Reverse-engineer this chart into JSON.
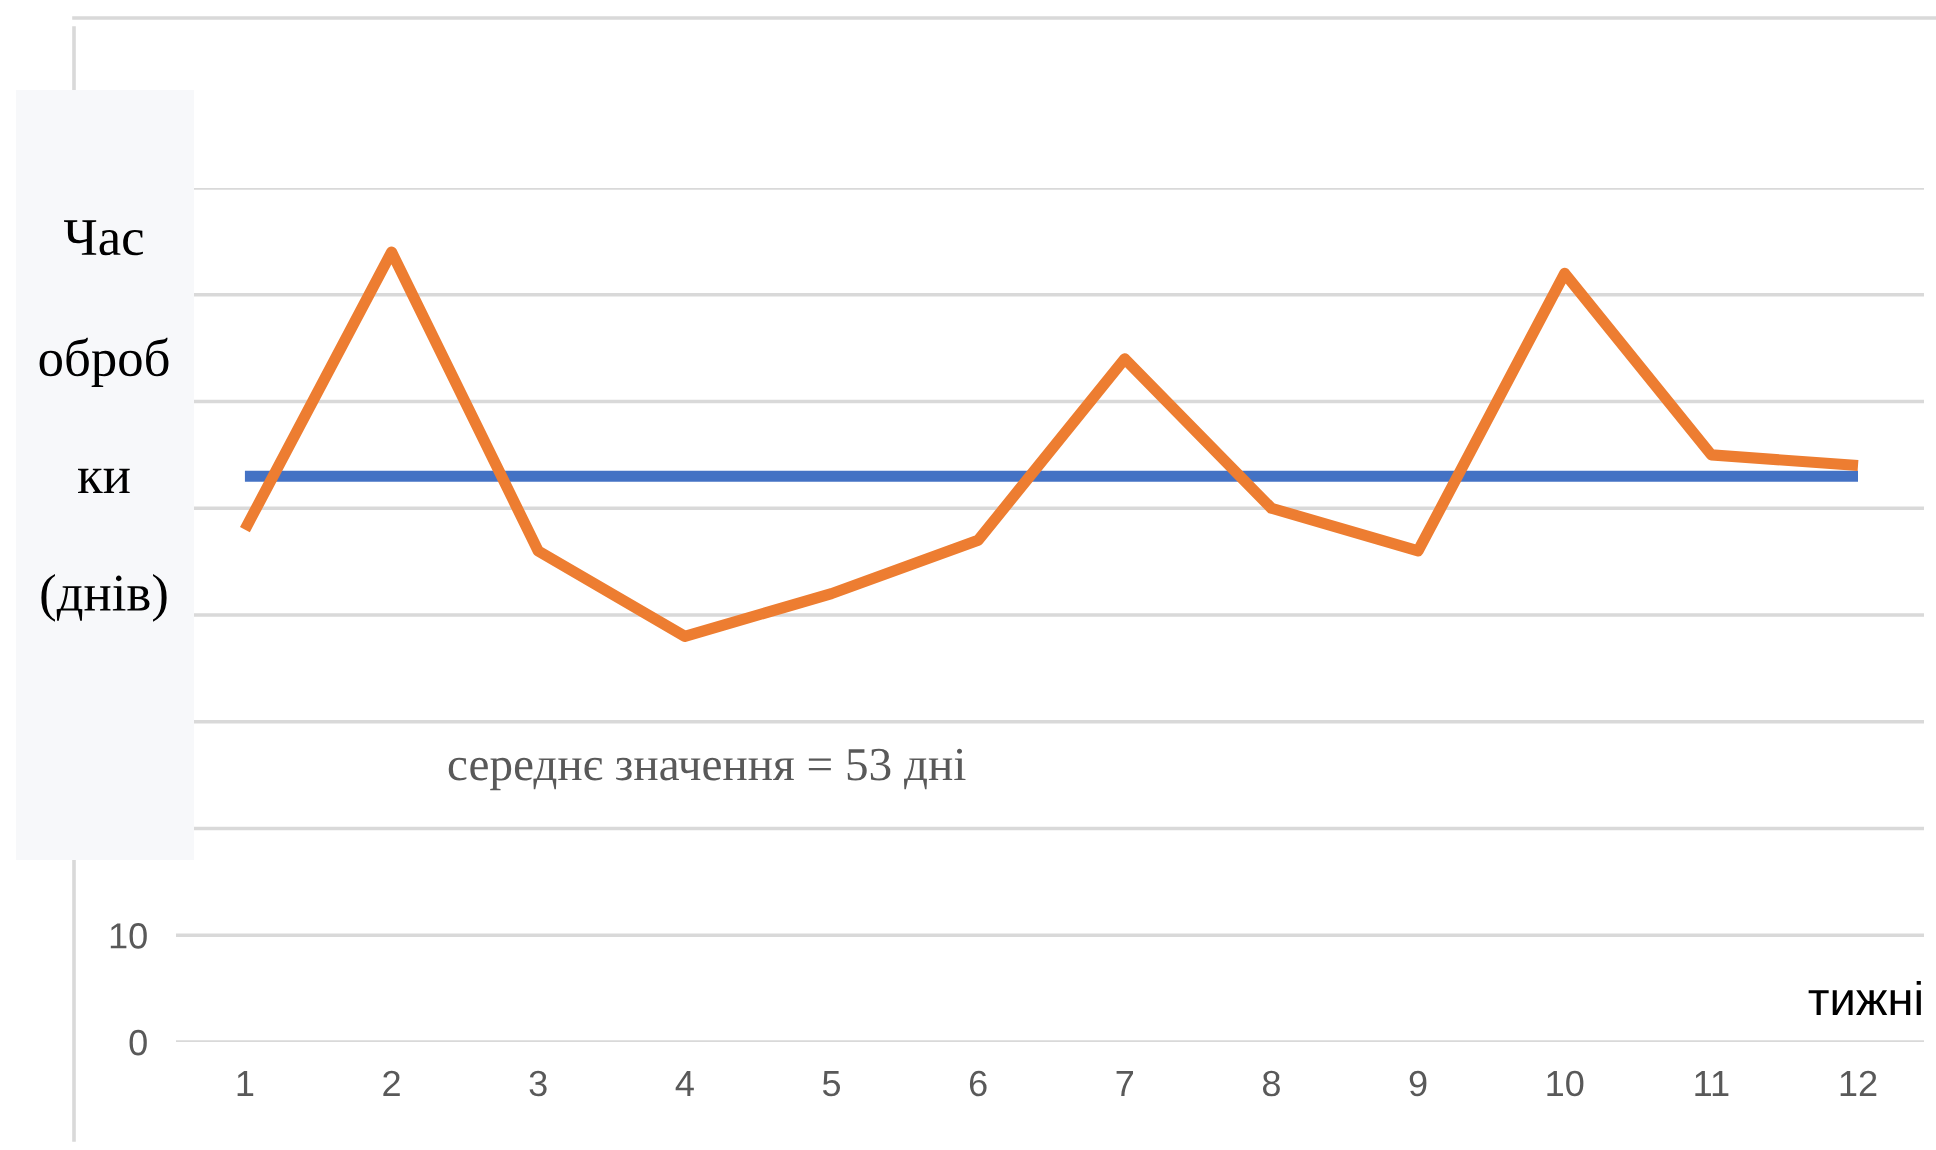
{
  "chart_data": {
    "type": "line",
    "ylabel": "Час\nоброб\nки\n(днів)",
    "xlabel": "тижні",
    "categories": [
      "1",
      "2",
      "3",
      "4",
      "5",
      "6",
      "7",
      "8",
      "9",
      "10",
      "11",
      "12"
    ],
    "series": [
      {
        "color": "#4472c4",
        "values": [
          53,
          53,
          53,
          53,
          53,
          53,
          53,
          53,
          53,
          53,
          53,
          53
        ]
      },
      {
        "color": "#ed7d31",
        "values": [
          48,
          74,
          46,
          38,
          42,
          47,
          64,
          50,
          46,
          72,
          55,
          54
        ]
      }
    ],
    "annotations": [
      "середнє значення = 53 дні"
    ],
    "ylim": [
      0,
      80
    ],
    "yticks": [
      0,
      10,
      {
        "value": 20,
        "label": null
      },
      {
        "value": 30,
        "label": null
      },
      {
        "value": 40,
        "label": null
      },
      {
        "value": 50,
        "label": null
      },
      {
        "value": 60,
        "label": null
      },
      {
        "value": 70,
        "label": null
      },
      {
        "value": 80,
        "label": null
      }
    ],
    "grid": "y",
    "legend": false,
    "marker": "none",
    "line_style": "solid"
  }
}
